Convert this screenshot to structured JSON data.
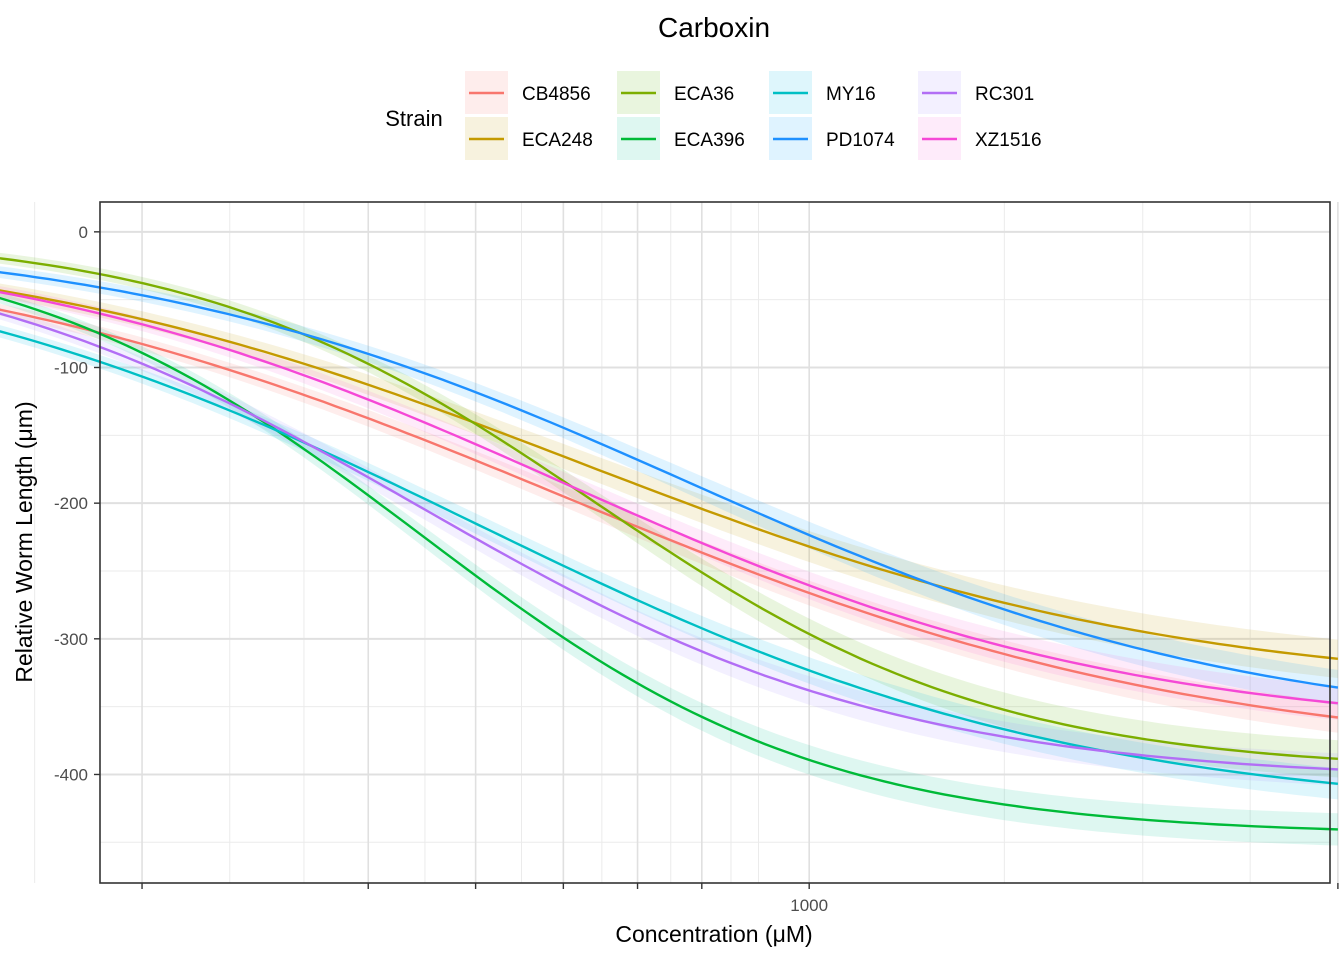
{
  "chart_data": {
    "type": "line",
    "title": "Carboxin",
    "xlabel": "Concentration (μM)",
    "ylabel": "Relative Worm Length (μm)",
    "xscale": "log10",
    "xlim_log10": [
      2.36,
      3.47
    ],
    "ylim": [
      -480,
      22
    ],
    "x_ticks": [
      {
        "value": 1000,
        "label": "1000"
      }
    ],
    "x_ticks_unlabeled": [
      250,
      400,
      500,
      600,
      700,
      800,
      3000
    ],
    "y_ticks": [
      0,
      -100,
      -200,
      -300,
      -400
    ],
    "ribbons": true,
    "legend": {
      "title": "Strain",
      "position": "top",
      "columns": 4
    },
    "model": "log-logistic: y = lower * (1 - 1/(1 + (x/ec50)^slope))",
    "x_range_uM": [
      153,
      3000
    ],
    "series": [
      {
        "name": "CB4856",
        "color": "#F8766D",
        "lower": -390,
        "ec50": 600,
        "slope": 1.5,
        "band": 12
      },
      {
        "name": "ECA248",
        "color": "#C49A00",
        "lower": -340,
        "ec50": 620,
        "slope": 1.6,
        "band": 15
      },
      {
        "name": "ECA36",
        "color": "#53B400",
        "lower": -398,
        "ec50": 640,
        "slope": 2.4,
        "band": 14
      },
      {
        "name": "ECA396",
        "color": "#00C094",
        "lower": -445,
        "ec50": 445,
        "slope": 2.4,
        "band": 12
      },
      {
        "name": "MY16",
        "color": "#00B6EB",
        "lower": -430,
        "ec50": 500,
        "slope": 1.6,
        "band": 12
      },
      {
        "name": "PD1074",
        "color": "#06A4FF",
        "lower": -370,
        "ec50": 780,
        "slope": 1.7,
        "band": 14
      },
      {
        "name": "RC301",
        "color": "#A58AFF",
        "lower": -405,
        "ec50": 445,
        "slope": 2.0,
        "band": 12
      },
      {
        "name": "XZ1516",
        "color": "#FB61D7",
        "lower": -370,
        "ec50": 600,
        "slope": 1.7,
        "band": 13
      }
    ],
    "line_colors": {
      "CB4856": "#F8766D",
      "ECA248": "#C49A00",
      "ECA36": "#7CAE00",
      "ECA396": "#00BA38",
      "MY16": "#00BFC4",
      "PD1074": "#1E90FF",
      "RC301": "#B26EF5",
      "XZ1516": "#F548D6"
    }
  }
}
